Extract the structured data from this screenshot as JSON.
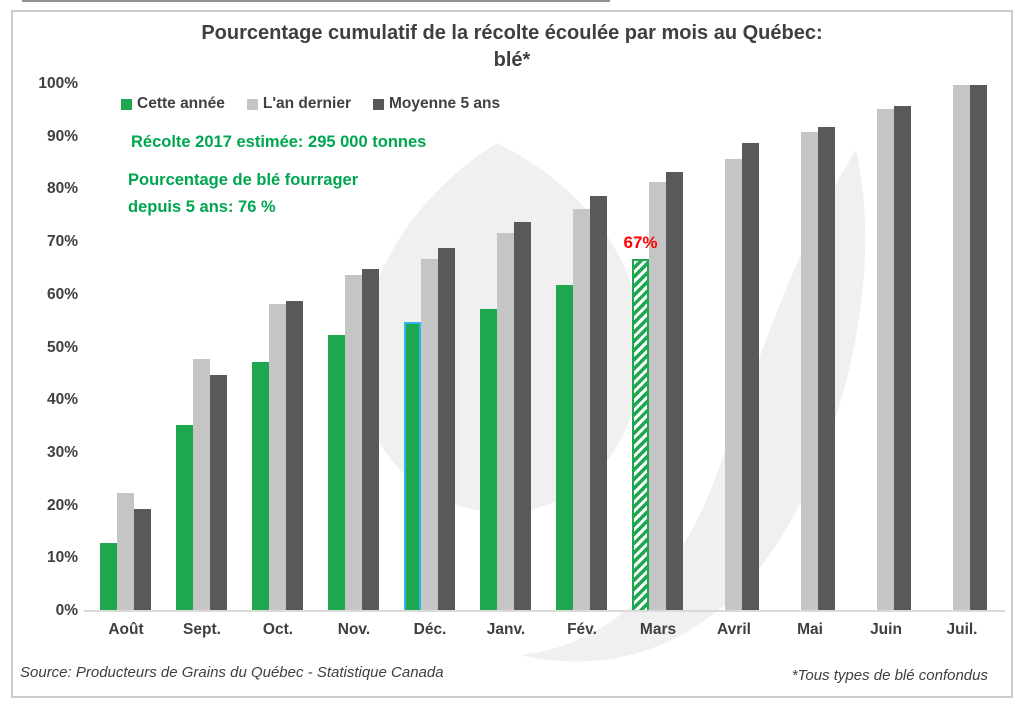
{
  "title": {
    "line1": "Pourcentage cumulatif de la récolte écoulée par mois au Québec:",
    "line2": "blé*"
  },
  "legend": {
    "items": [
      {
        "label": "Cette année",
        "color": "#1FA750"
      },
      {
        "label": "L'an dernier",
        "color": "#C5C5C5"
      },
      {
        "label": "Moyenne 5 ans",
        "color": "#58595B"
      }
    ]
  },
  "annotations": {
    "estimate": "Récolte 2017 estimée: 295 000 tonnes",
    "fourrager_line1": "Pourcentage de blé fourrager",
    "fourrager_line2": "depuis 5 ans: 76 %"
  },
  "footer": {
    "source": "Source: Producteurs de Grains du Québec - Statistique Canada",
    "footnote": "*Tous types de blé confondus"
  },
  "colors": {
    "green": "#1FA750",
    "green_text": "#00A64F",
    "light_gray": "#C5C5C5",
    "dark_gray": "#58595B",
    "red": "#FF0000",
    "cyan_outline": "#2FB4E9",
    "axis_text": "#3F3F3F",
    "axis_line": "#DADADA",
    "watermark": "#F0F0F0",
    "border": "#CBCBCB"
  },
  "chart_data": {
    "type": "bar",
    "title": "Pourcentage cumulatif de la récolte écoulée par mois au Québec: blé*",
    "categories": [
      "Août",
      "Sept.",
      "Oct.",
      "Nov.",
      "Déc.",
      "Janv.",
      "Fév.",
      "Mars",
      "Avril",
      "Mai",
      "Juin",
      "Juil."
    ],
    "series": [
      {
        "name": "Cette année",
        "color": "#1FA750",
        "values": [
          13,
          35.5,
          47.5,
          52.5,
          55,
          57.5,
          62,
          67,
          null,
          null,
          null,
          null
        ]
      },
      {
        "name": "L'an dernier",
        "color": "#C5C5C5",
        "values": [
          22.5,
          48,
          58.5,
          64,
          67,
          72,
          76.5,
          81.5,
          86,
          91,
          95.5,
          100
        ]
      },
      {
        "name": "Moyenne 5 ans",
        "color": "#58595B",
        "values": [
          19.5,
          45,
          59,
          65,
          69,
          74,
          79,
          83.5,
          89,
          92,
          96,
          100
        ]
      }
    ],
    "ylim": [
      0,
      100
    ],
    "yticks": [
      "0%",
      "10%",
      "20%",
      "30%",
      "40%",
      "50%",
      "60%",
      "70%",
      "80%",
      "90%",
      "100%"
    ],
    "grid": false,
    "legend_position": "top-left-inside",
    "special": {
      "selected_bar": {
        "series": 0,
        "index": 4,
        "outline": "#2FB4E9"
      },
      "projected_bar": {
        "series": 0,
        "index": 7,
        "style": "hatched",
        "label": "67%",
        "label_color": "#FF0000"
      }
    }
  }
}
